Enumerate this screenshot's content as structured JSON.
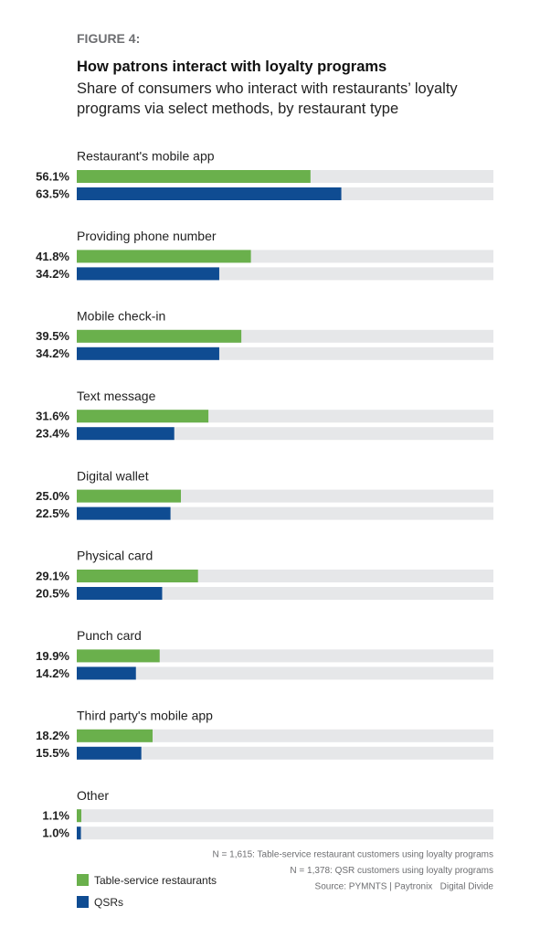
{
  "chart_data": {
    "type": "bar",
    "orientation": "horizontal",
    "figure_label": "FIGURE 4:",
    "title": "How patrons interact with loyalty programs",
    "subtitle": "Share of consumers who interact with restaurants’ loyalty programs via select methods, by restaurant type",
    "categories": [
      "Restaurant's mobile app",
      "Providing phone number",
      "Mobile check-in",
      "Text message",
      "Digital wallet",
      "Physical card",
      "Punch card",
      "Third party's mobile app",
      "Other"
    ],
    "xlim": [
      0,
      100
    ],
    "track_color": "#e6e7e9",
    "series": [
      {
        "name": "Table-service restaurants",
        "color": "#6ab04c",
        "values": [
          56.1,
          41.8,
          39.5,
          31.6,
          25.0,
          29.1,
          19.9,
          18.2,
          1.1
        ],
        "value_labels": [
          "56.1%",
          "41.8%",
          "39.5%",
          "31.6%",
          "25.0%",
          "29.1%",
          "19.9%",
          "18.2%",
          "1.1%"
        ]
      },
      {
        "name": "QSRs",
        "color": "#0f4c92",
        "values": [
          63.5,
          34.2,
          34.2,
          23.4,
          22.5,
          20.5,
          14.2,
          15.5,
          1.0
        ],
        "value_labels": [
          "63.5%",
          "34.2%",
          "34.2%",
          "23.4%",
          "22.5%",
          "20.5%",
          "14.2%",
          "15.5%",
          "1.0%"
        ]
      }
    ],
    "notes": [
      "N = 1,615: Table-service restaurant customers using loyalty programs",
      "N = 1,378: QSR customers using loyalty programs",
      "Source: PYMNTS | Paytronix   Digital Divide"
    ]
  }
}
